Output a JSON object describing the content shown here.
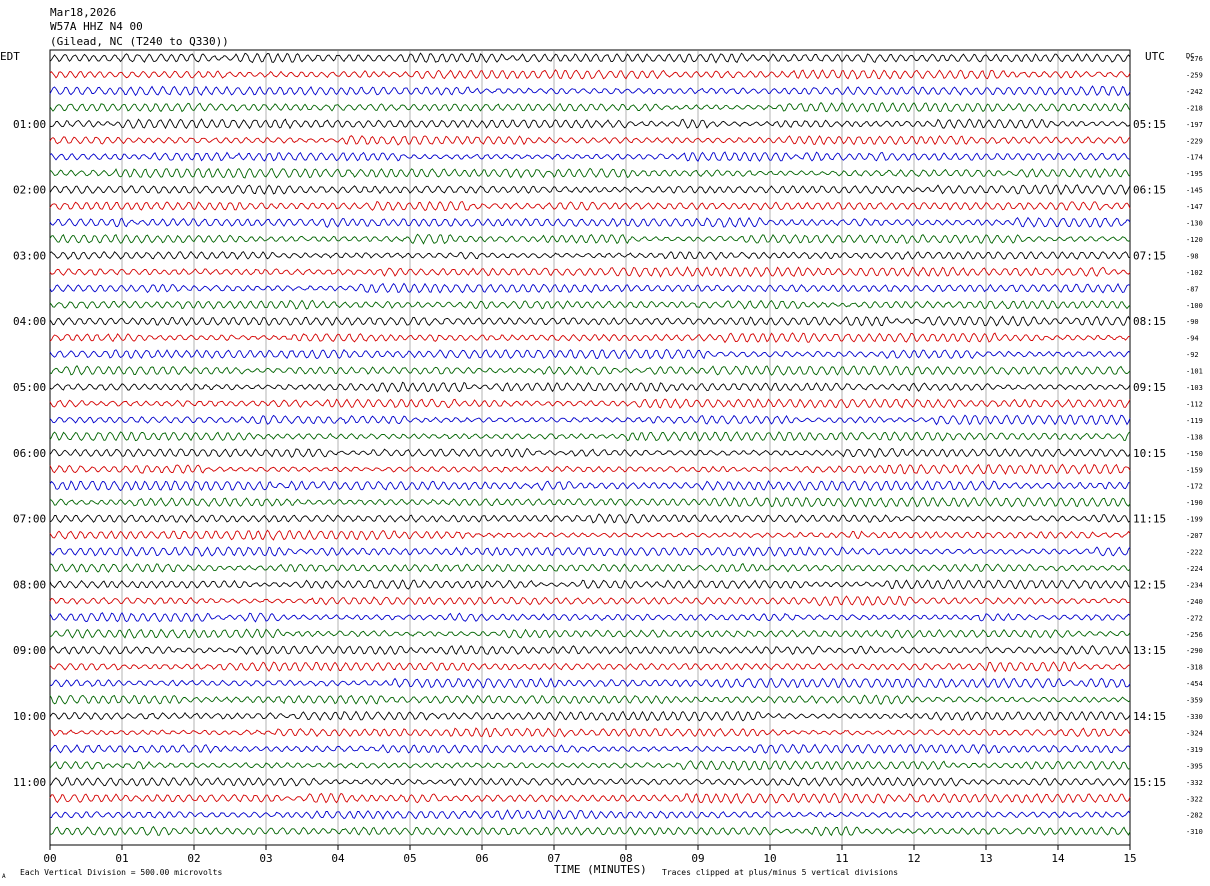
{
  "header": {
    "date": "Mar18,2026",
    "station": "W57A HHZ N4 00",
    "location": "(Gilead, NC (T240 to Q330))"
  },
  "left_zone_label": "EDT",
  "right_zone_label": "UTC",
  "dc_label": "DC",
  "footer": {
    "scale_note": "Each Vertical Division =  500.00 microvolts",
    "xlabel": "TIME (MINUTES)",
    "clip_note": "Traces clipped at plus/minus 5 vertical divisions",
    "corner_mark": "A"
  },
  "colors": {
    "trace_cycle": [
      "#000000",
      "#d40000",
      "#0000cc",
      "#006400"
    ],
    "grid": "#808080",
    "text": "#000000"
  },
  "chart_data": {
    "type": "line",
    "title": "",
    "xlabel": "TIME (MINUTES)",
    "xlim": [
      0,
      15
    ],
    "x_ticks": [
      "00",
      "01",
      "02",
      "03",
      "04",
      "05",
      "06",
      "07",
      "08",
      "09",
      "10",
      "11",
      "12",
      "13",
      "14",
      "15"
    ],
    "trace_minutes": 15,
    "trace_count": 48,
    "left_hour_labels": [
      "01:00",
      "02:00",
      "03:00",
      "04:00",
      "05:00",
      "06:00",
      "07:00",
      "08:00",
      "09:00",
      "10:00",
      "11:00"
    ],
    "right_hour_labels": [
      "05:15",
      "06:15",
      "07:15",
      "08:15",
      "09:15",
      "10:15",
      "11:15",
      "12:15",
      "13:15",
      "14:15",
      "15:15"
    ],
    "dc_offsets": [
      -276,
      -259,
      -242,
      -218,
      -197,
      -229,
      -174,
      -195,
      -145,
      -147,
      -130,
      -120,
      -98,
      -102,
      -87,
      -100,
      -90,
      -94,
      -92,
      -101,
      -103,
      -112,
      -119,
      -138,
      -150,
      -159,
      -172,
      -190,
      -199,
      -207,
      -222,
      -224,
      -234,
      -240,
      -272,
      -256,
      -290,
      -318,
      -454,
      -359,
      -330,
      -324,
      -319,
      -395,
      -332,
      -322,
      -282,
      -310
    ]
  }
}
